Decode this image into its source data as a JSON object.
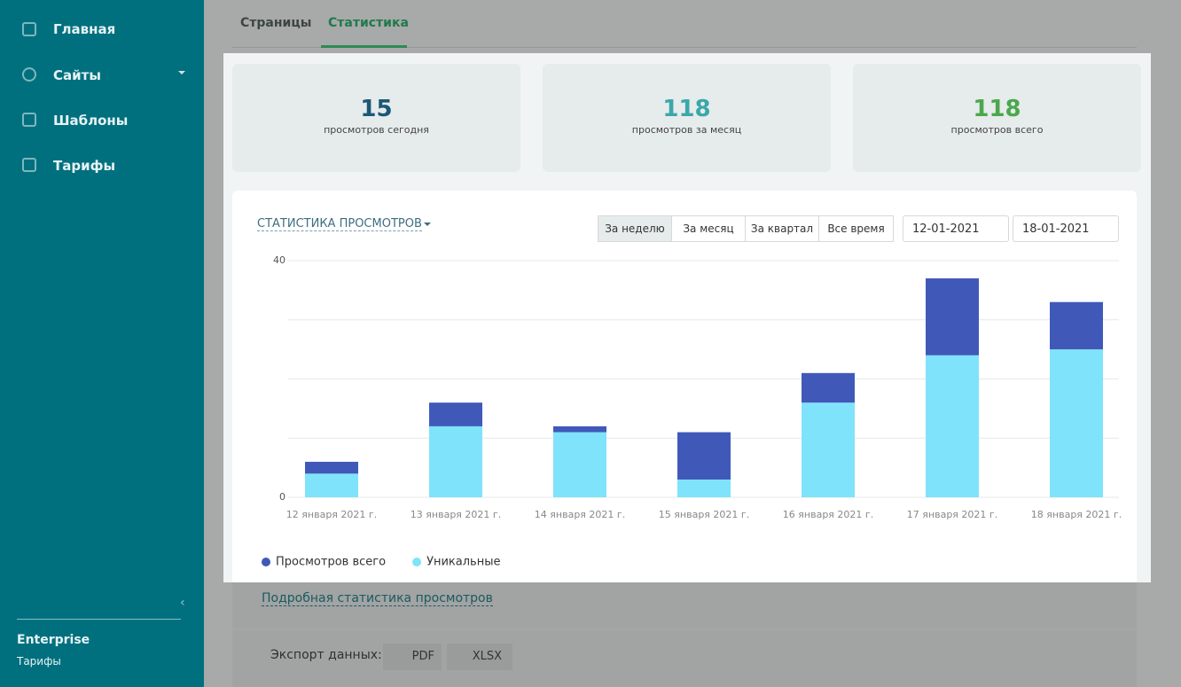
{
  "sidebar": {
    "menu": [
      "Главная",
      "Сайты",
      "Шаблоны",
      "Тарифы"
    ],
    "plan": "Enterprise",
    "plan_link": "Тарифы"
  },
  "tabs": [
    "Страницы",
    "Статистика"
  ],
  "stats": [
    {
      "value": 15,
      "label": "просмотров сегодня",
      "color": "#1b5876"
    },
    {
      "value": 118,
      "label": "просмотров за месяц",
      "color": "#3aa7aa"
    },
    {
      "value": 118,
      "label": "просмотров всего",
      "color": "#4aa84c"
    }
  ],
  "controls": {
    "ranges": [
      "За неделю",
      "За месяц",
      "За квартал",
      "Все время"
    ],
    "date_from": "12-01-2021",
    "date_to": "18-01-2021"
  },
  "chart_data": {
    "type": "stacked_bar",
    "title": "СТАТИСТИКА ПРОСМОТРОВ",
    "categories": [
      "12 января 2021 г.",
      "13 января 2021 г.",
      "14 января 2021 г.",
      "15 января 2021 г.",
      "16 января 2021 г.",
      "17 января 2021 г.",
      "18 января 2021 г."
    ],
    "series": [
      {
        "name": "Уникальные",
        "color": "#7fe3fb",
        "values": [
          4,
          12,
          11,
          3,
          16,
          24,
          25
        ]
      },
      {
        "name": "Просмотров всего",
        "color": "#4059b9",
        "values": [
          2,
          4,
          1,
          8,
          5,
          13,
          8
        ]
      }
    ],
    "legend_order": [
      1,
      0
    ],
    "ylim": [
      0,
      40
    ],
    "yticks": [
      0,
      {
        "value": 10,
        "label": null
      },
      {
        "value": 20,
        "label": null
      },
      {
        "value": 30,
        "label": null
      },
      40
    ],
    "grid": true
  },
  "details_link": "Подробная статистика просмотров",
  "export": {
    "label": "Экспорт данных:",
    "buttons": [
      "PDF",
      "XLSX"
    ]
  }
}
